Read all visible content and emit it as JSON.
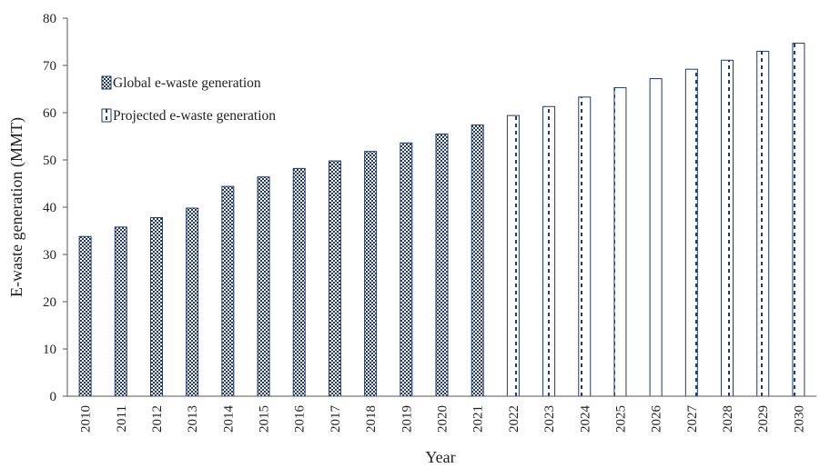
{
  "chart_data": {
    "type": "bar",
    "title": "",
    "xlabel": "Year",
    "ylabel": "E-waste generation (MMT)",
    "ylim": [
      0,
      80
    ],
    "yticks": [
      0,
      10,
      20,
      30,
      40,
      50,
      60,
      70,
      80
    ],
    "grid": false,
    "legend_position": "top-left",
    "categories": [
      "2010",
      "2011",
      "2012",
      "2013",
      "2014",
      "2015",
      "2016",
      "2017",
      "2018",
      "2019",
      "2020",
      "2021",
      "2022",
      "2023",
      "2024",
      "2025",
      "2026",
      "2027",
      "2028",
      "2029",
      "2030"
    ],
    "series": [
      {
        "name": "Global e-waste generation",
        "pattern": "checker",
        "color": "#1f3a70",
        "values": [
          33.8,
          35.8,
          37.8,
          39.8,
          44.4,
          46.4,
          48.2,
          49.8,
          51.8,
          53.6,
          55.5,
          57.4,
          null,
          null,
          null,
          null,
          null,
          null,
          null,
          null,
          null
        ]
      },
      {
        "name": "Projected e-waste generation",
        "pattern": "dashed",
        "color": "#1f3a70",
        "values": [
          null,
          null,
          null,
          null,
          null,
          null,
          null,
          null,
          null,
          null,
          null,
          null,
          59.4,
          61.3,
          63.3,
          65.3,
          67.2,
          69.2,
          71.1,
          73.0,
          74.7
        ]
      }
    ]
  }
}
